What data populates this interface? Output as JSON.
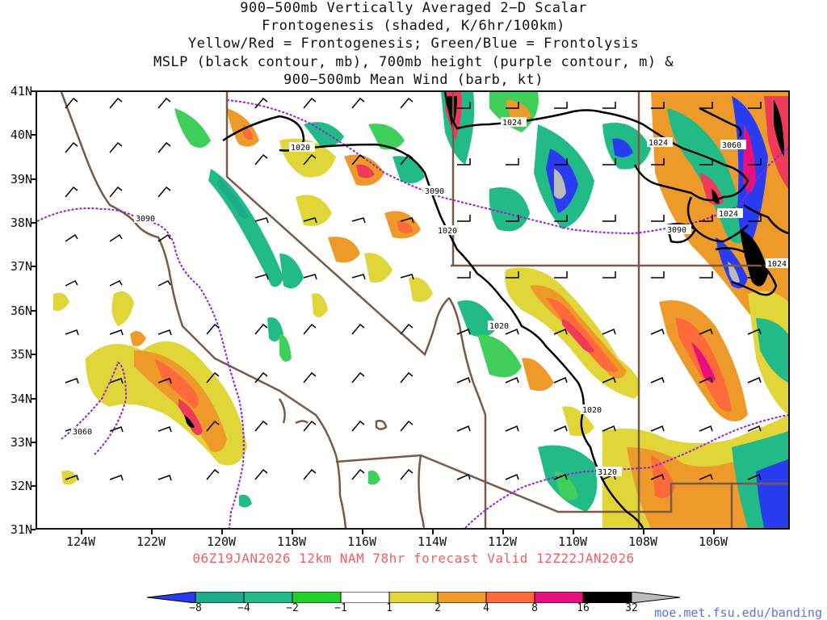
{
  "title_lines": [
    "900−500mb Vertically Averaged 2−D Scalar",
    "Frontogenesis (shaded, K/6hr/100km)",
    "Yellow/Red = Frontogenesis;  Green/Blue = Frontolysis",
    "MSLP (black contour, mb), 700mb height (purple contour, m) &",
    "900−500mb Mean Wind (barb, kt)"
  ],
  "lat_labels": [
    "41N",
    "40N",
    "39N",
    "38N",
    "37N",
    "36N",
    "35N",
    "34N",
    "33N",
    "32N",
    "31N"
  ],
  "lon_labels": [
    "124W",
    "122W",
    "120W",
    "118W",
    "116W",
    "114W",
    "112W",
    "110W",
    "108W",
    "106W"
  ],
  "mslp_labels": [
    "1020",
    "1020",
    "1020",
    "1020",
    "1024",
    "1024",
    "1024",
    "1024"
  ],
  "height_labels": [
    "3090",
    "3090",
    "3090",
    "3060",
    "3060",
    "3120"
  ],
  "forecast_info": "06Z19JAN2026 12km NAM 78hr forecast Valid 12Z22JAN2026",
  "colorbar": {
    "labels": [
      "−8",
      "−4",
      "−2",
      "−1",
      "1",
      "2",
      "4",
      "8",
      "16",
      "32"
    ],
    "colors": [
      "#2a3cf0",
      "#1faa8c",
      "#22bb88",
      "#3fcf5a",
      "#22d12c",
      "#ffffff",
      "#e0d63a",
      "#ee9a2a",
      "#ff6a3a",
      "#f03a5a",
      "#e8107a",
      "#000000",
      "#bbbbbb"
    ]
  },
  "legend_colors": {
    "mslp": "#000000",
    "height": "#9a1fd6",
    "borders": "#7a5a44",
    "barbs": "#000000"
  },
  "credit": "moe.met.fsu.edu/banding"
}
